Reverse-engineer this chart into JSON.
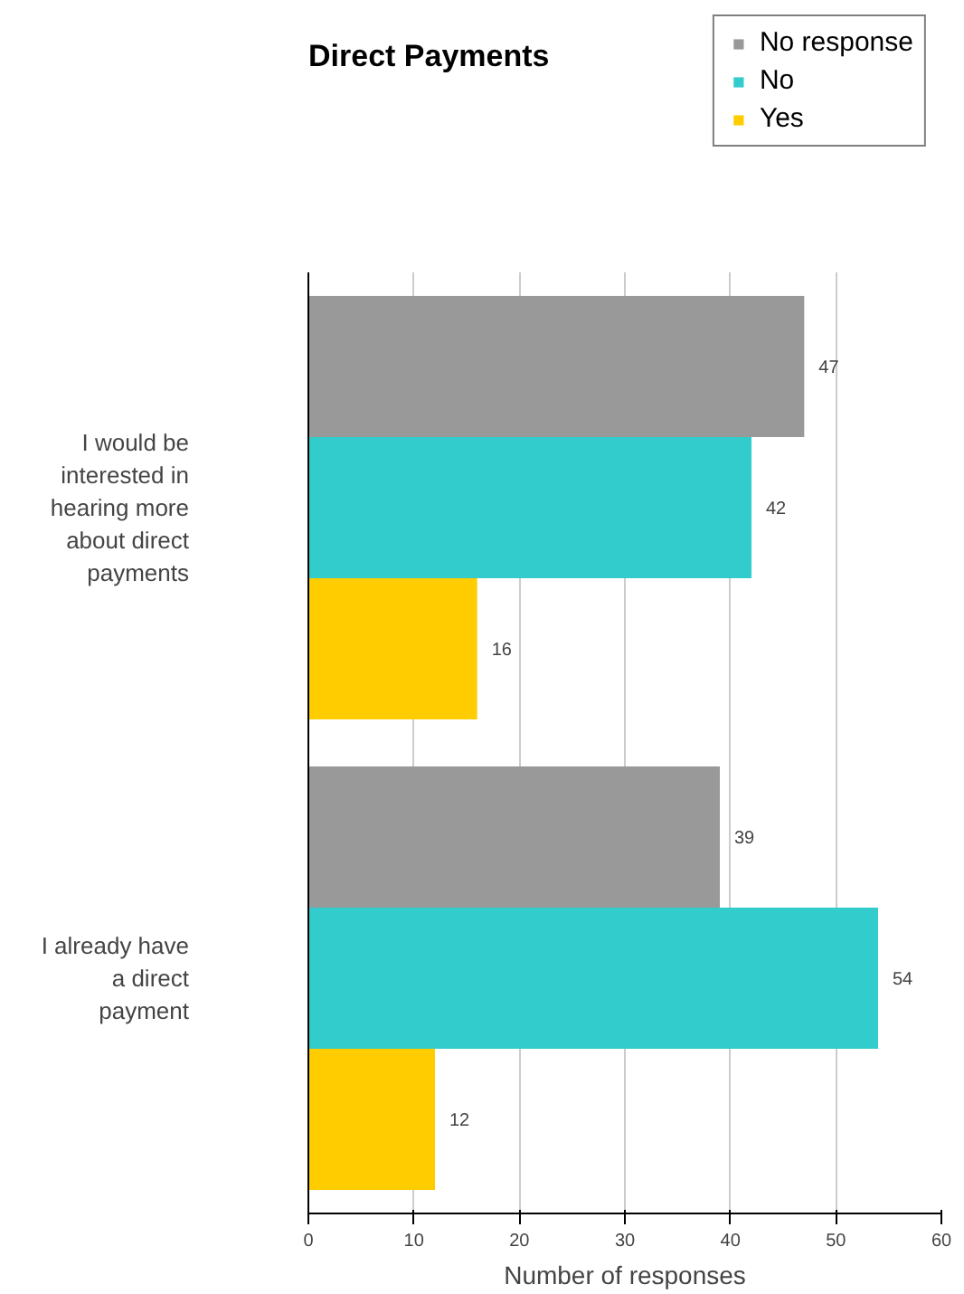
{
  "chart_data": {
    "type": "bar",
    "orientation": "horizontal",
    "title": "Direct Payments",
    "xlabel": "Number of responses",
    "categories": [
      "I would be interested in hearing more about direct payments",
      "I already have a direct payment"
    ],
    "series": [
      {
        "name": "No response",
        "color": "#999999",
        "values": [
          47,
          39
        ]
      },
      {
        "name": "No",
        "color": "#33cccc",
        "values": [
          42,
          54
        ]
      },
      {
        "name": "Yes",
        "color": "#ffcc00",
        "values": [
          16,
          12
        ]
      }
    ],
    "xlim": [
      0,
      60
    ],
    "xticks": [
      0,
      10,
      20,
      30,
      40,
      50,
      60
    ],
    "grid": "x",
    "legend": "top right",
    "data_labels": true
  }
}
